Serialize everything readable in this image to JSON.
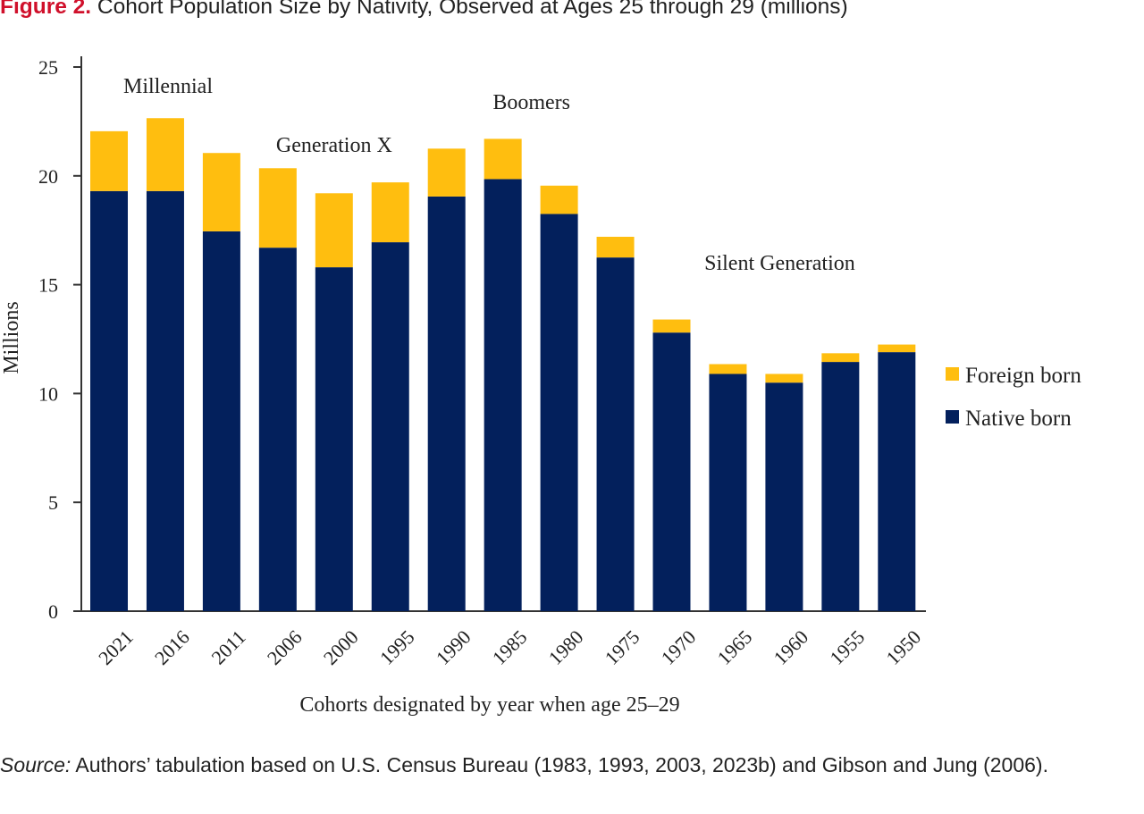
{
  "figure": {
    "label": "Figure 2.",
    "title": "Cohort Population Size by Nativity, Observed at Ages 25 through 29 (millions)"
  },
  "source": {
    "label": "Source:",
    "text": " Authors’ tabulation based on U.S. Census Bureau (1983, 1993, 2003, 2023b) and Gibson and Jung (2006)."
  },
  "colors": {
    "native_born": "#03205c",
    "foreign_born": "#ffbe0f",
    "axis": "#333333"
  },
  "chart_data": {
    "type": "bar",
    "stacked": true,
    "title": "Cohort Population Size by Nativity, Observed at Ages 25 through 29 (millions)",
    "xlabel": "Cohorts designated by year when age 25–29",
    "ylabel": "Millions",
    "ylim": [
      0,
      25
    ],
    "yticks": [
      0,
      5,
      10,
      15,
      20,
      25
    ],
    "grid": false,
    "legend_position": "right",
    "categories": [
      "2021",
      "2016",
      "2011",
      "2006",
      "2000",
      "1995",
      "1990",
      "1985",
      "1980",
      "1975",
      "1970",
      "1965",
      "1960",
      "1955",
      "1950"
    ],
    "series": [
      {
        "name": "Native born",
        "values": [
          19.3,
          19.3,
          17.45,
          16.7,
          15.8,
          16.95,
          19.05,
          19.85,
          18.25,
          16.25,
          12.8,
          10.9,
          10.5,
          11.45,
          11.9
        ]
      },
      {
        "name": "Foreign born",
        "values": [
          2.75,
          3.35,
          3.6,
          3.65,
          3.4,
          2.75,
          2.2,
          1.85,
          1.3,
          0.95,
          0.6,
          0.45,
          0.4,
          0.4,
          0.35
        ]
      }
    ],
    "annotations": [
      {
        "text": "Millennial",
        "category": "2021"
      },
      {
        "text": "Generation X",
        "category": "2006"
      },
      {
        "text": "Boomers",
        "category": "1985"
      },
      {
        "text": "Silent Generation",
        "category": "1965"
      }
    ]
  }
}
